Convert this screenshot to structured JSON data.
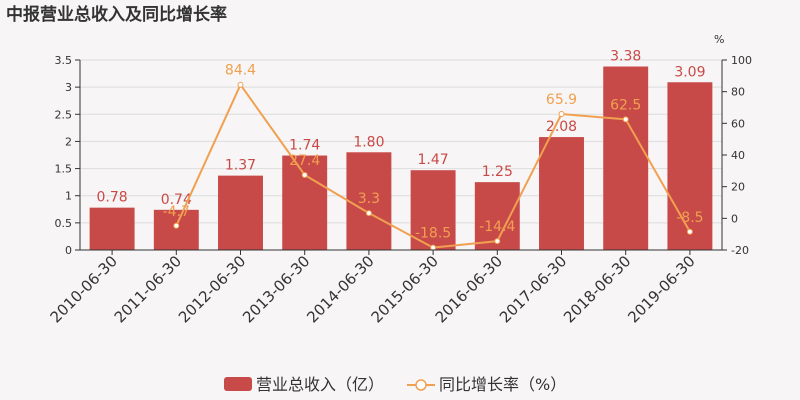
{
  "title": "中报营业总收入及同比增长率",
  "chart_data": {
    "type": "bar",
    "categories": [
      "2010-06-30",
      "2011-06-30",
      "2012-06-30",
      "2013-06-30",
      "2014-06-30",
      "2015-06-30",
      "2016-06-30",
      "2017-06-30",
      "2018-06-30",
      "2019-06-30"
    ],
    "series": [
      {
        "name": "营业总收入（亿）",
        "type": "bar",
        "axis": "left",
        "values": [
          0.78,
          0.74,
          1.37,
          1.74,
          1.8,
          1.47,
          1.25,
          2.08,
          3.38,
          3.09
        ],
        "labels": [
          "0.78",
          "0.74",
          "1.37",
          "1.74",
          "1.80",
          "1.47",
          "1.25",
          "2.08",
          "3.38",
          "3.09"
        ],
        "color": "#c84a48"
      },
      {
        "name": "同比增长率（%）",
        "type": "line",
        "axis": "right",
        "values": [
          null,
          -4.7,
          84.4,
          27.4,
          3.3,
          -18.5,
          -14.4,
          65.9,
          62.5,
          -8.5
        ],
        "labels": [
          "",
          "-4.7",
          "84.4",
          "27.4",
          "3.3",
          "-18.5",
          "-14.4",
          "65.9",
          "62.5",
          "-8.5"
        ],
        "color": "#f0a050"
      }
    ],
    "y_left": {
      "ylim": [
        0,
        3.5
      ],
      "ticks": [
        "0",
        "0.5",
        "1",
        "1.5",
        "2",
        "2.5",
        "3",
        "3.5"
      ]
    },
    "y_right": {
      "ylim": [
        -20,
        100
      ],
      "ticks": [
        "-20",
        "0",
        "20",
        "40",
        "60",
        "80",
        "100"
      ],
      "unit": "%"
    },
    "legend": "bottom-center",
    "grid": true
  }
}
